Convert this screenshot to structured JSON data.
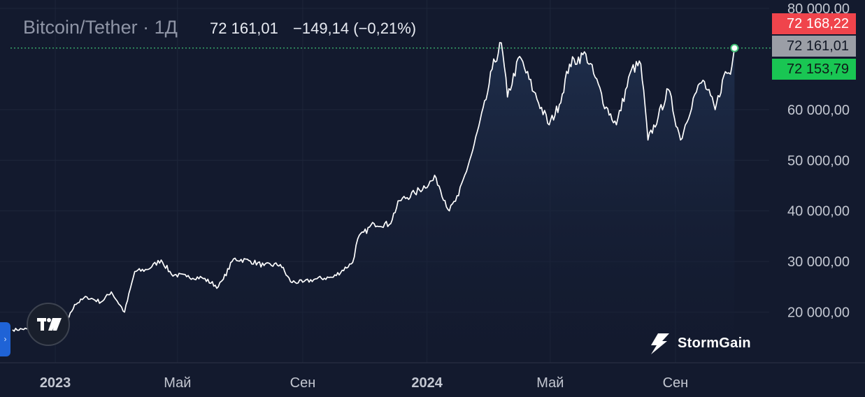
{
  "header": {
    "symbol_title": "Bitcoin/Tether · 1Д",
    "last_price": "72 161,01",
    "change": "−149,14 (−0,21%)"
  },
  "price_tags": {
    "ask": "72 168,22",
    "last": "72 161,01",
    "bid": "72 153,79"
  },
  "brand": {
    "name": "StormGain"
  },
  "colors": {
    "background": "#131a2e",
    "line": "#ffffff",
    "area_top": "#1f2f4d",
    "ask": "#f0444c",
    "last": "#9b9ea6",
    "bid": "#19c653",
    "last_price_line": "#3fbf74"
  },
  "icons": {
    "sidebar_toggle": "chevron-right-icon",
    "tradingview_logo": "tradingview-logo-icon",
    "brand_logo": "lightning-bolt-icon"
  },
  "chart_data": {
    "type": "area",
    "title": "Bitcoin/Tether · 1Д",
    "xlabel": "",
    "ylabel": "",
    "x": [
      "2022-11-20",
      "2022-12-04",
      "2022-12-18",
      "2023-01-01",
      "2023-01-10",
      "2023-01-20",
      "2023-02-01",
      "2023-02-15",
      "2023-02-25",
      "2023-03-10",
      "2023-03-20",
      "2023-04-01",
      "2023-04-15",
      "2023-04-25",
      "2023-05-10",
      "2023-05-25",
      "2023-06-10",
      "2023-06-15",
      "2023-06-25",
      "2023-07-10",
      "2023-07-25",
      "2023-08-10",
      "2023-08-20",
      "2023-09-01",
      "2023-09-15",
      "2023-10-01",
      "2023-10-20",
      "2023-10-25",
      "2023-11-10",
      "2023-11-25",
      "2023-12-05",
      "2023-12-20",
      "2024-01-10",
      "2024-01-23",
      "2024-02-01",
      "2024-02-15",
      "2024-02-28",
      "2024-03-05",
      "2024-03-14",
      "2024-03-20",
      "2024-04-01",
      "2024-04-15",
      "2024-04-30",
      "2024-05-10",
      "2024-05-20",
      "2024-06-05",
      "2024-06-25",
      "2024-07-05",
      "2024-07-20",
      "2024-07-29",
      "2024-08-05",
      "2024-08-15",
      "2024-08-25",
      "2024-09-06",
      "2024-09-20",
      "2024-09-28",
      "2024-10-10",
      "2024-10-20",
      "2024-10-25",
      "2024-10-29"
    ],
    "series": [
      {
        "values": [
          16500,
          16700,
          16800,
          16600,
          17200,
          21500,
          23000,
          22000,
          24000,
          20000,
          28000,
          28400,
          30300,
          27500,
          27000,
          26800,
          25000,
          26500,
          30500,
          30200,
          29200,
          29400,
          26000,
          25900,
          26600,
          26900,
          29800,
          34500,
          37500,
          37300,
          42000,
          43500,
          46500,
          40000,
          43000,
          52000,
          62000,
          68000,
          73200,
          62500,
          70500,
          63500,
          57000,
          61000,
          69000,
          71000,
          60500,
          57000,
          68000,
          69000,
          54000,
          58500,
          64000,
          54000,
          63000,
          65800,
          60000,
          67500,
          67000,
          72161.01
        ]
      }
    ],
    "x_ticks": [
      {
        "label": "2023",
        "x": "2023-01-01",
        "bold": true
      },
      {
        "label": "Май",
        "x": "2023-05-01",
        "bold": false
      },
      {
        "label": "Сен",
        "x": "2023-09-01",
        "bold": false
      },
      {
        "label": "2024",
        "x": "2024-01-01",
        "bold": true
      },
      {
        "label": "Май",
        "x": "2024-05-01",
        "bold": false
      },
      {
        "label": "Сен",
        "x": "2024-09-01",
        "bold": false
      }
    ],
    "y_ticks": [
      {
        "label": "20 000,00",
        "value": 20000
      },
      {
        "label": "30 000,00",
        "value": 30000
      },
      {
        "label": "40 000,00",
        "value": 40000
      },
      {
        "label": "50 000,00",
        "value": 50000
      },
      {
        "label": "60 000,00",
        "value": 60000
      },
      {
        "label": "80 000,00",
        "value": 80000
      }
    ],
    "ylim": [
      10000,
      80000
    ],
    "xlim": [
      "2022-11-18",
      "2024-11-30"
    ],
    "last_price_line": 72161.01,
    "grid": true,
    "legend": "none"
  }
}
